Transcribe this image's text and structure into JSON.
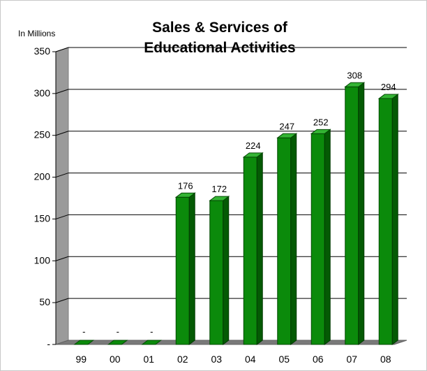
{
  "chart_data": {
    "type": "bar",
    "title": "Sales & Services of Educational Activities",
    "ylabel": "In Millions",
    "categories": [
      "99",
      "00",
      "01",
      "02",
      "03",
      "04",
      "05",
      "06",
      "07",
      "08"
    ],
    "values": [
      0,
      0,
      0,
      176,
      172,
      224,
      247,
      252,
      308,
      294
    ],
    "data_labels": [
      "-",
      "-",
      "-",
      "176",
      "172",
      "224",
      "247",
      "252",
      "308",
      "294"
    ],
    "ylim": [
      0,
      350
    ],
    "y_ticks": [
      0,
      50,
      100,
      150,
      200,
      250,
      300,
      350
    ],
    "y_tick_labels": [
      "-",
      "50",
      "100",
      "150",
      "200",
      "250",
      "300",
      "350"
    ],
    "grid": true,
    "legend": false,
    "colors": {
      "bar_front": "#0b8a0b",
      "bar_side": "#045a04",
      "bar_top": "#34b434",
      "wall": "#9a9a9a",
      "floor": "#7a7a7a",
      "gridline": "#000000"
    }
  }
}
